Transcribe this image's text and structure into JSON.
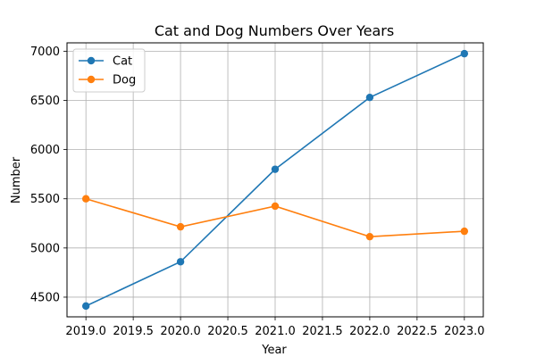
{
  "chart_data": {
    "type": "line",
    "title": "Cat and Dog Numbers Over Years",
    "xlabel": "Year",
    "ylabel": "Number",
    "x": [
      2019,
      2020,
      2021,
      2022,
      2023
    ],
    "series": [
      {
        "name": "Cat",
        "color": "#1f77b4",
        "values": [
          4410,
          4860,
          5800,
          6530,
          6975
        ]
      },
      {
        "name": "Dog",
        "color": "#ff7f0e",
        "values": [
          5500,
          5215,
          5425,
          5115,
          5170
        ]
      }
    ],
    "xlim": [
      2018.8,
      2023.2
    ],
    "ylim": [
      4300,
      7085
    ],
    "x_ticks": [
      2019.0,
      2019.5,
      2020.0,
      2020.5,
      2021.0,
      2021.5,
      2022.0,
      2022.5,
      2023.0
    ],
    "x_tick_labels": [
      "2019.0",
      "2019.5",
      "2020.0",
      "2020.5",
      "2021.0",
      "2021.5",
      "2022.0",
      "2022.5",
      "2023.0"
    ],
    "y_ticks": [
      4500,
      5000,
      5500,
      6000,
      6500,
      7000
    ],
    "y_tick_labels": [
      "4500",
      "5000",
      "5500",
      "6000",
      "6500",
      "7000"
    ],
    "grid": true,
    "legend_position": "upper-left",
    "marker": "circle"
  }
}
